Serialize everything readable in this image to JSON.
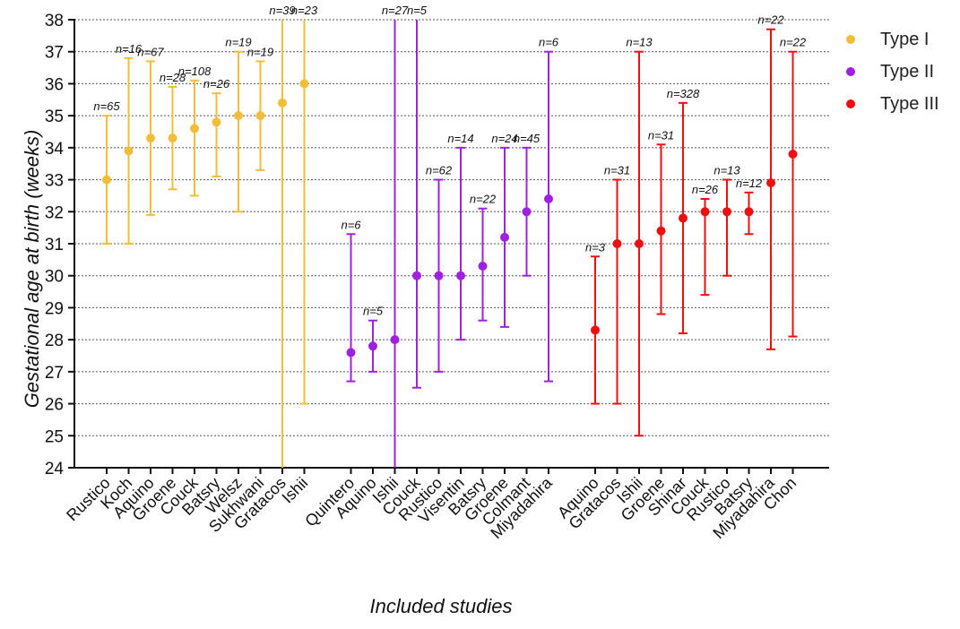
{
  "chart_data": {
    "type": "scatter",
    "xlabel": "Included studies",
    "ylabel": "Gestational age at birth (weeks)",
    "ylim": [
      24,
      38
    ],
    "yticks": [
      24,
      25,
      26,
      27,
      28,
      29,
      30,
      31,
      32,
      33,
      34,
      35,
      36,
      37,
      38
    ],
    "grid": "horizontal dotted",
    "legend_position": "top-right",
    "series": [
      {
        "name": "Type I",
        "color": "#F2BE3A",
        "points": [
          {
            "study": "Rustico",
            "y": 33.0,
            "low": 31.0,
            "high": 35.0,
            "n": "n=65"
          },
          {
            "study": "Koch",
            "y": 33.9,
            "low": 31.0,
            "high": 36.8,
            "n": "n=16"
          },
          {
            "study": "Aquino",
            "y": 34.3,
            "low": 31.9,
            "high": 36.7,
            "n": "n=67"
          },
          {
            "study": "Groene",
            "y": 34.3,
            "low": 32.7,
            "high": 35.9,
            "n": "n=28"
          },
          {
            "study": "Couck",
            "y": 34.6,
            "low": 32.5,
            "high": 36.1,
            "n": "n=108"
          },
          {
            "study": "Batsry",
            "y": 34.8,
            "low": 33.1,
            "high": 35.7,
            "n": "n=26"
          },
          {
            "study": "Welsz",
            "y": 35.0,
            "low": 32.0,
            "high": 37.0,
            "n": "n=19"
          },
          {
            "study": "Sukhwani",
            "y": 35.0,
            "low": 33.3,
            "high": 36.7,
            "n": "n=19"
          },
          {
            "study": "Gratacos",
            "y": 35.4,
            "low": 24.0,
            "high": 38.0,
            "n": "n=39"
          },
          {
            "study": "Ishii",
            "y": 36.0,
            "low": 26.0,
            "high": 38.0,
            "n": "n=23"
          }
        ]
      },
      {
        "name": "Type II",
        "color": "#A020E0",
        "points": [
          {
            "study": "Quintero",
            "y": 27.6,
            "low": 26.7,
            "high": 31.3,
            "n": "n=6"
          },
          {
            "study": "Aquino",
            "y": 27.8,
            "low": 27.0,
            "high": 28.6,
            "n": "n=5"
          },
          {
            "study": "Ishii",
            "y": 28.0,
            "low": 24.0,
            "high": 38.0,
            "n": "n=27"
          },
          {
            "study": "Couck",
            "y": 30.0,
            "low": 26.5,
            "high": 38.0,
            "n": "n=5"
          },
          {
            "study": "Rustico",
            "y": 30.0,
            "low": 27.0,
            "high": 33.0,
            "n": "n=62"
          },
          {
            "study": "Visentin",
            "y": 30.0,
            "low": 28.0,
            "high": 34.0,
            "n": "n=14"
          },
          {
            "study": "Batsry",
            "y": 30.3,
            "low": 28.6,
            "high": 32.1,
            "n": "n=22"
          },
          {
            "study": "Groene",
            "y": 31.2,
            "low": 28.4,
            "high": 34.0,
            "n": "n=24"
          },
          {
            "study": "Colmant",
            "y": 32.0,
            "low": 30.0,
            "high": 34.0,
            "n": "n=45"
          },
          {
            "study": "Miyadahira",
            "y": 32.4,
            "low": 26.7,
            "high": 37.0,
            "n": "n=6"
          }
        ]
      },
      {
        "name": "Type III",
        "color": "#EE1010",
        "points": [
          {
            "study": "Aquino",
            "y": 28.3,
            "low": 26.0,
            "high": 30.6,
            "n": "n=3"
          },
          {
            "study": "Gratacos",
            "y": 31.0,
            "low": 26.0,
            "high": 33.0,
            "n": "n=31"
          },
          {
            "study": "Ishii",
            "y": 31.0,
            "low": 25.0,
            "high": 37.0,
            "n": "n=13"
          },
          {
            "study": "Groene",
            "y": 31.4,
            "low": 28.8,
            "high": 34.1,
            "n": "n=31"
          },
          {
            "study": "Shinar",
            "y": 31.8,
            "low": 28.2,
            "high": 35.4,
            "n": "n=328"
          },
          {
            "study": "Couck",
            "y": 32.0,
            "low": 29.4,
            "high": 32.4,
            "n": "n=26"
          },
          {
            "study": "Rustico",
            "y": 32.0,
            "low": 30.0,
            "high": 33.0,
            "n": "n=13"
          },
          {
            "study": "Batsry",
            "y": 32.0,
            "low": 31.3,
            "high": 32.6,
            "n": "n=12"
          },
          {
            "study": "Miyadahira",
            "y": 32.9,
            "low": 27.7,
            "high": 37.7,
            "n": "n=22"
          },
          {
            "study": "Chon",
            "y": 33.8,
            "low": 28.1,
            "high": 37.0,
            "n": "n=22"
          }
        ]
      }
    ]
  }
}
